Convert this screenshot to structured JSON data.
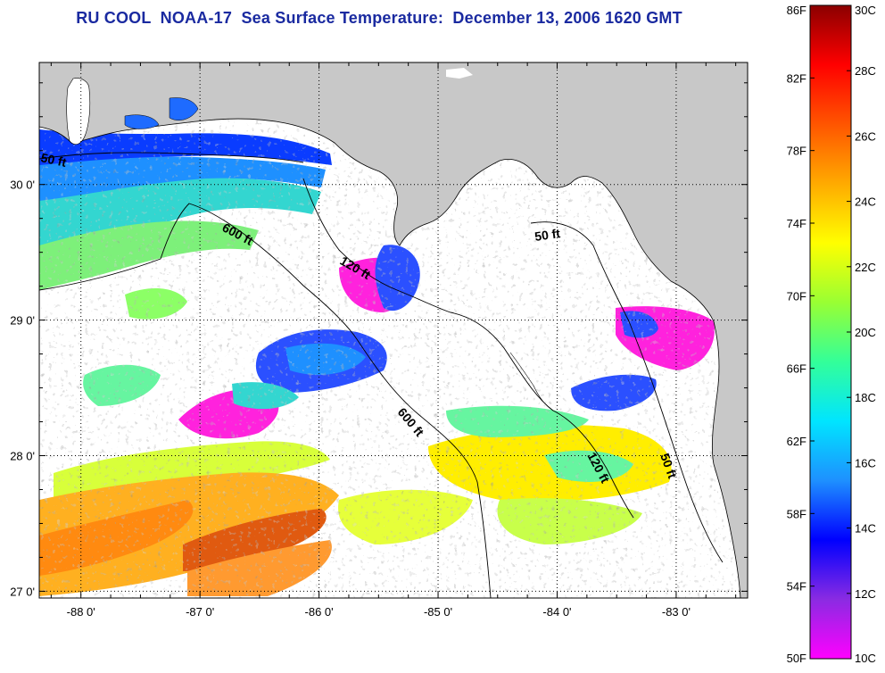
{
  "title": "RU COOL  NOAA-17  Sea Surface Temperature:  December 13, 2006 1620 GMT",
  "map": {
    "lon_range": [
      -88.35,
      -82.4
    ],
    "lat_range": [
      26.95,
      30.9
    ],
    "lon_ticks": [
      -88,
      -87,
      -86,
      -85,
      -84,
      -83
    ],
    "lat_ticks": [
      27,
      28,
      29,
      30
    ],
    "lon_tick_labels": [
      "-88 0'",
      "-87 0'",
      "-86 0'",
      "-85 0'",
      "-84 0'",
      "-83 0'"
    ],
    "lat_tick_labels": [
      "27 0'",
      "28 0'",
      "29 0'",
      "30 0'"
    ],
    "grid": "dotted",
    "land_color": "#c8c8c8",
    "cloud_color": "#ffffff",
    "contour_labels": [
      {
        "text": "50 ft"
      },
      {
        "text": "600 ft"
      },
      {
        "text": "120 ft"
      },
      {
        "text": "50 ft"
      },
      {
        "text": "600 ft"
      },
      {
        "text": "120 ft"
      },
      {
        "text": "50 ft"
      }
    ]
  },
  "colorbar": {
    "fahrenheit_labels": [
      "86F",
      "82F",
      "78F",
      "74F",
      "70F",
      "66F",
      "62F",
      "58F",
      "54F",
      "50F"
    ],
    "celsius_labels": [
      "30C",
      "28C",
      "26C",
      "24C",
      "22C",
      "20C",
      "18C",
      "16C",
      "14C",
      "12C",
      "10C"
    ],
    "range_c": [
      10,
      30
    ],
    "colors": [
      "#ff00ff",
      "#8a2be2",
      "#0000ff",
      "#1e90ff",
      "#00e5ff",
      "#33ff99",
      "#99ff33",
      "#ffff00",
      "#ffaa00",
      "#ff5500",
      "#ff0000",
      "#8b0000"
    ]
  }
}
